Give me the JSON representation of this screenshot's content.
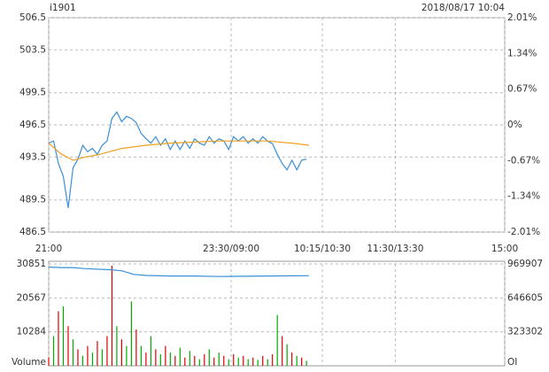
{
  "chart_data": [
    {
      "type": "line",
      "title": "i1901",
      "subtitle": "2018/08/17 10:04",
      "xlim": [
        0,
        375
      ],
      "xticks": [
        {
          "value": 0,
          "label": "21:00"
        },
        {
          "value": 150,
          "label": "23:30/09:00"
        },
        {
          "value": 225,
          "label": "10:15/10:30"
        },
        {
          "value": 285,
          "label": "11:30/13:30"
        },
        {
          "value": 375,
          "label": "15:00"
        }
      ],
      "ylim": [
        486.5,
        506.5
      ],
      "yticks": [
        506.5,
        503.5,
        499.5,
        496.5,
        493.5,
        489.5,
        486.5
      ],
      "ytick_colors": [
        "#dd0000",
        "#dd0000",
        "#dd0000",
        "#000000",
        "#009900",
        "#009900",
        "#009900"
      ],
      "y2lim": [
        -2.01,
        2.01
      ],
      "y2ticks": [
        {
          "value": 2.01,
          "label": "2.01%"
        },
        {
          "value": 1.34,
          "label": "1.34%"
        },
        {
          "value": 0.67,
          "label": "0.67%"
        },
        {
          "value": 0,
          "label": "0%"
        },
        {
          "value": -0.67,
          "label": "-0.67%"
        },
        {
          "value": -1.34,
          "label": "-1.34%"
        },
        {
          "value": -2.01,
          "label": "-2.01%"
        }
      ],
      "y2tick_colors": [
        "#dd0000",
        "#dd0000",
        "#dd0000",
        "#000000",
        "#009900",
        "#009900",
        "#009900"
      ],
      "grid": true,
      "series": [
        {
          "color": "#3a8fd8",
          "x": [
            0,
            4,
            8,
            12,
            16,
            20,
            24,
            28,
            32,
            36,
            40,
            44,
            48,
            52,
            56,
            60,
            64,
            68,
            72,
            76,
            80,
            84,
            88,
            92,
            96,
            100,
            104,
            108,
            112,
            116,
            120,
            124,
            128,
            132,
            136,
            140,
            144,
            148,
            152,
            156,
            160,
            164,
            168,
            172,
            176,
            180,
            184,
            188,
            192,
            196,
            200,
            204,
            208,
            212
          ],
          "values": [
            494.8,
            495.0,
            492.9,
            491.7,
            488.75,
            492.5,
            493.3,
            494.6,
            494.0,
            494.3,
            493.75,
            494.6,
            495.0,
            497.1,
            497.7,
            496.8,
            497.3,
            497.1,
            496.7,
            495.7,
            495.2,
            494.8,
            495.4,
            494.6,
            495.2,
            494.2,
            495.0,
            494.2,
            495.0,
            494.3,
            495.2,
            494.8,
            494.6,
            495.4,
            494.8,
            495.2,
            495.0,
            494.2,
            495.4,
            495.0,
            495.4,
            494.8,
            495.2,
            494.8,
            495.4,
            495.0,
            494.75,
            493.75,
            492.9,
            492.3,
            493.2,
            492.3,
            493.2,
            493.3
          ]
        },
        {
          "color": "#f0a020",
          "x": [
            0,
            10,
            20,
            30,
            40,
            50,
            60,
            80,
            100,
            120,
            140,
            160,
            180,
            200,
            214
          ],
          "values": [
            494.8,
            493.8,
            493.2,
            493.5,
            493.7,
            494.0,
            494.3,
            494.6,
            494.8,
            494.9,
            495.0,
            495.0,
            495.0,
            494.8,
            494.6
          ]
        }
      ]
    },
    {
      "type": "combo",
      "xlim": [
        0,
        375
      ],
      "xticks": [
        0,
        150,
        225,
        285,
        375
      ],
      "ylim": [
        0,
        30851
      ],
      "yticks": [
        10284,
        20567,
        30851
      ],
      "y2lim": [
        0,
        969907
      ],
      "y2ticks": [
        323302,
        646605,
        969907
      ],
      "grid": true,
      "series": [
        {
          "name": "Volume",
          "type": "bar",
          "x": [
            0,
            4,
            8,
            12,
            16,
            20,
            24,
            28,
            32,
            36,
            40,
            44,
            48,
            52,
            56,
            60,
            64,
            68,
            72,
            76,
            80,
            84,
            88,
            92,
            96,
            100,
            104,
            108,
            112,
            116,
            120,
            124,
            128,
            132,
            136,
            140,
            144,
            148,
            152,
            156,
            160,
            164,
            168,
            172,
            176,
            180,
            184,
            188,
            192,
            196,
            200,
            204,
            208,
            212
          ],
          "values": [
            2500,
            9000,
            16500,
            18000,
            12000,
            8000,
            5000,
            3000,
            6000,
            4000,
            7500,
            5000,
            9000,
            30300,
            12000,
            8000,
            6000,
            19500,
            11000,
            6000,
            4000,
            9000,
            5000,
            3500,
            6000,
            4000,
            3000,
            5500,
            2500,
            4500,
            3000,
            2000,
            3500,
            5000,
            2500,
            4000,
            3000,
            2000,
            3500,
            2500,
            3000,
            2000,
            2500,
            1800,
            3000,
            2000,
            3500,
            15400,
            9000,
            6500,
            4000,
            3000,
            2500,
            1500
          ],
          "colors": [
            "#dd0000",
            "#00aa00",
            "#dd0000",
            "#00aa00",
            "#dd0000",
            "#00aa00",
            "#dd0000",
            "#00aa00",
            "#dd0000",
            "#00aa00",
            "#dd0000",
            "#00aa00",
            "#dd0000",
            "#dd0000",
            "#00aa00",
            "#dd0000",
            "#00aa00",
            "#00aa00",
            "#dd0000",
            "#00aa00",
            "#dd0000",
            "#00aa00",
            "#dd0000",
            "#00aa00",
            "#dd0000",
            "#00aa00",
            "#dd0000",
            "#00aa00",
            "#dd0000",
            "#00aa00",
            "#dd0000",
            "#00aa00",
            "#dd0000",
            "#00aa00",
            "#dd0000",
            "#00aa00",
            "#dd0000",
            "#00aa00",
            "#dd0000",
            "#00aa00",
            "#dd0000",
            "#00aa00",
            "#dd0000",
            "#00aa00",
            "#dd0000",
            "#00aa00",
            "#dd0000",
            "#00aa00",
            "#dd0000",
            "#00aa00",
            "#dd0000",
            "#00aa00",
            "#dd0000",
            "#00aa00"
          ]
        },
        {
          "name": "OI",
          "type": "line",
          "axis": "y2",
          "color": "#3a8fd8",
          "x": [
            0,
            10,
            20,
            30,
            50,
            60,
            70,
            80,
            100,
            120,
            140,
            160,
            180,
            200,
            214
          ],
          "values": [
            940000,
            935000,
            935000,
            925000,
            915000,
            905000,
            870000,
            860000,
            855000,
            855000,
            850000,
            853000,
            855000,
            857000,
            858000
          ]
        }
      ]
    }
  ]
}
